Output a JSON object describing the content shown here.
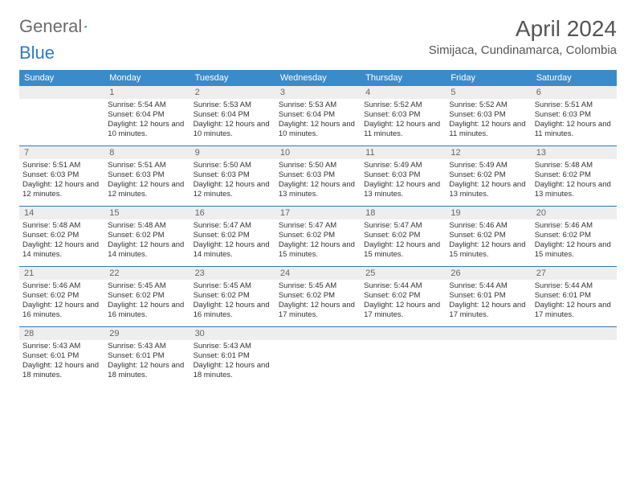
{
  "brand": {
    "part1": "General",
    "part2": "Blue",
    "shape_color": "#2d7cc0"
  },
  "title": "April 2024",
  "location": "Simijaca, Cundinamarca, Colombia",
  "colors": {
    "header_bg": "#3b8bc8",
    "divider": "#2d7cc0",
    "numrow_bg": "#eeeeee",
    "text": "#333333"
  },
  "day_headers": [
    "Sunday",
    "Monday",
    "Tuesday",
    "Wednesday",
    "Thursday",
    "Friday",
    "Saturday"
  ],
  "weeks": [
    [
      null,
      {
        "n": "1",
        "sr": "5:54 AM",
        "ss": "6:04 PM",
        "dl": "12 hours and 10 minutes."
      },
      {
        "n": "2",
        "sr": "5:53 AM",
        "ss": "6:04 PM",
        "dl": "12 hours and 10 minutes."
      },
      {
        "n": "3",
        "sr": "5:53 AM",
        "ss": "6:04 PM",
        "dl": "12 hours and 10 minutes."
      },
      {
        "n": "4",
        "sr": "5:52 AM",
        "ss": "6:03 PM",
        "dl": "12 hours and 11 minutes."
      },
      {
        "n": "5",
        "sr": "5:52 AM",
        "ss": "6:03 PM",
        "dl": "12 hours and 11 minutes."
      },
      {
        "n": "6",
        "sr": "5:51 AM",
        "ss": "6:03 PM",
        "dl": "12 hours and 11 minutes."
      }
    ],
    [
      {
        "n": "7",
        "sr": "5:51 AM",
        "ss": "6:03 PM",
        "dl": "12 hours and 12 minutes."
      },
      {
        "n": "8",
        "sr": "5:51 AM",
        "ss": "6:03 PM",
        "dl": "12 hours and 12 minutes."
      },
      {
        "n": "9",
        "sr": "5:50 AM",
        "ss": "6:03 PM",
        "dl": "12 hours and 12 minutes."
      },
      {
        "n": "10",
        "sr": "5:50 AM",
        "ss": "6:03 PM",
        "dl": "12 hours and 13 minutes."
      },
      {
        "n": "11",
        "sr": "5:49 AM",
        "ss": "6:03 PM",
        "dl": "12 hours and 13 minutes."
      },
      {
        "n": "12",
        "sr": "5:49 AM",
        "ss": "6:02 PM",
        "dl": "12 hours and 13 minutes."
      },
      {
        "n": "13",
        "sr": "5:48 AM",
        "ss": "6:02 PM",
        "dl": "12 hours and 13 minutes."
      }
    ],
    [
      {
        "n": "14",
        "sr": "5:48 AM",
        "ss": "6:02 PM",
        "dl": "12 hours and 14 minutes."
      },
      {
        "n": "15",
        "sr": "5:48 AM",
        "ss": "6:02 PM",
        "dl": "12 hours and 14 minutes."
      },
      {
        "n": "16",
        "sr": "5:47 AM",
        "ss": "6:02 PM",
        "dl": "12 hours and 14 minutes."
      },
      {
        "n": "17",
        "sr": "5:47 AM",
        "ss": "6:02 PM",
        "dl": "12 hours and 15 minutes."
      },
      {
        "n": "18",
        "sr": "5:47 AM",
        "ss": "6:02 PM",
        "dl": "12 hours and 15 minutes."
      },
      {
        "n": "19",
        "sr": "5:46 AM",
        "ss": "6:02 PM",
        "dl": "12 hours and 15 minutes."
      },
      {
        "n": "20",
        "sr": "5:46 AM",
        "ss": "6:02 PM",
        "dl": "12 hours and 15 minutes."
      }
    ],
    [
      {
        "n": "21",
        "sr": "5:46 AM",
        "ss": "6:02 PM",
        "dl": "12 hours and 16 minutes."
      },
      {
        "n": "22",
        "sr": "5:45 AM",
        "ss": "6:02 PM",
        "dl": "12 hours and 16 minutes."
      },
      {
        "n": "23",
        "sr": "5:45 AM",
        "ss": "6:02 PM",
        "dl": "12 hours and 16 minutes."
      },
      {
        "n": "24",
        "sr": "5:45 AM",
        "ss": "6:02 PM",
        "dl": "12 hours and 17 minutes."
      },
      {
        "n": "25",
        "sr": "5:44 AM",
        "ss": "6:02 PM",
        "dl": "12 hours and 17 minutes."
      },
      {
        "n": "26",
        "sr": "5:44 AM",
        "ss": "6:01 PM",
        "dl": "12 hours and 17 minutes."
      },
      {
        "n": "27",
        "sr": "5:44 AM",
        "ss": "6:01 PM",
        "dl": "12 hours and 17 minutes."
      }
    ],
    [
      {
        "n": "28",
        "sr": "5:43 AM",
        "ss": "6:01 PM",
        "dl": "12 hours and 18 minutes."
      },
      {
        "n": "29",
        "sr": "5:43 AM",
        "ss": "6:01 PM",
        "dl": "12 hours and 18 minutes."
      },
      {
        "n": "30",
        "sr": "5:43 AM",
        "ss": "6:01 PM",
        "dl": "12 hours and 18 minutes."
      },
      null,
      null,
      null,
      null
    ]
  ],
  "labels": {
    "sunrise": "Sunrise:",
    "sunset": "Sunset:",
    "daylight": "Daylight:"
  }
}
